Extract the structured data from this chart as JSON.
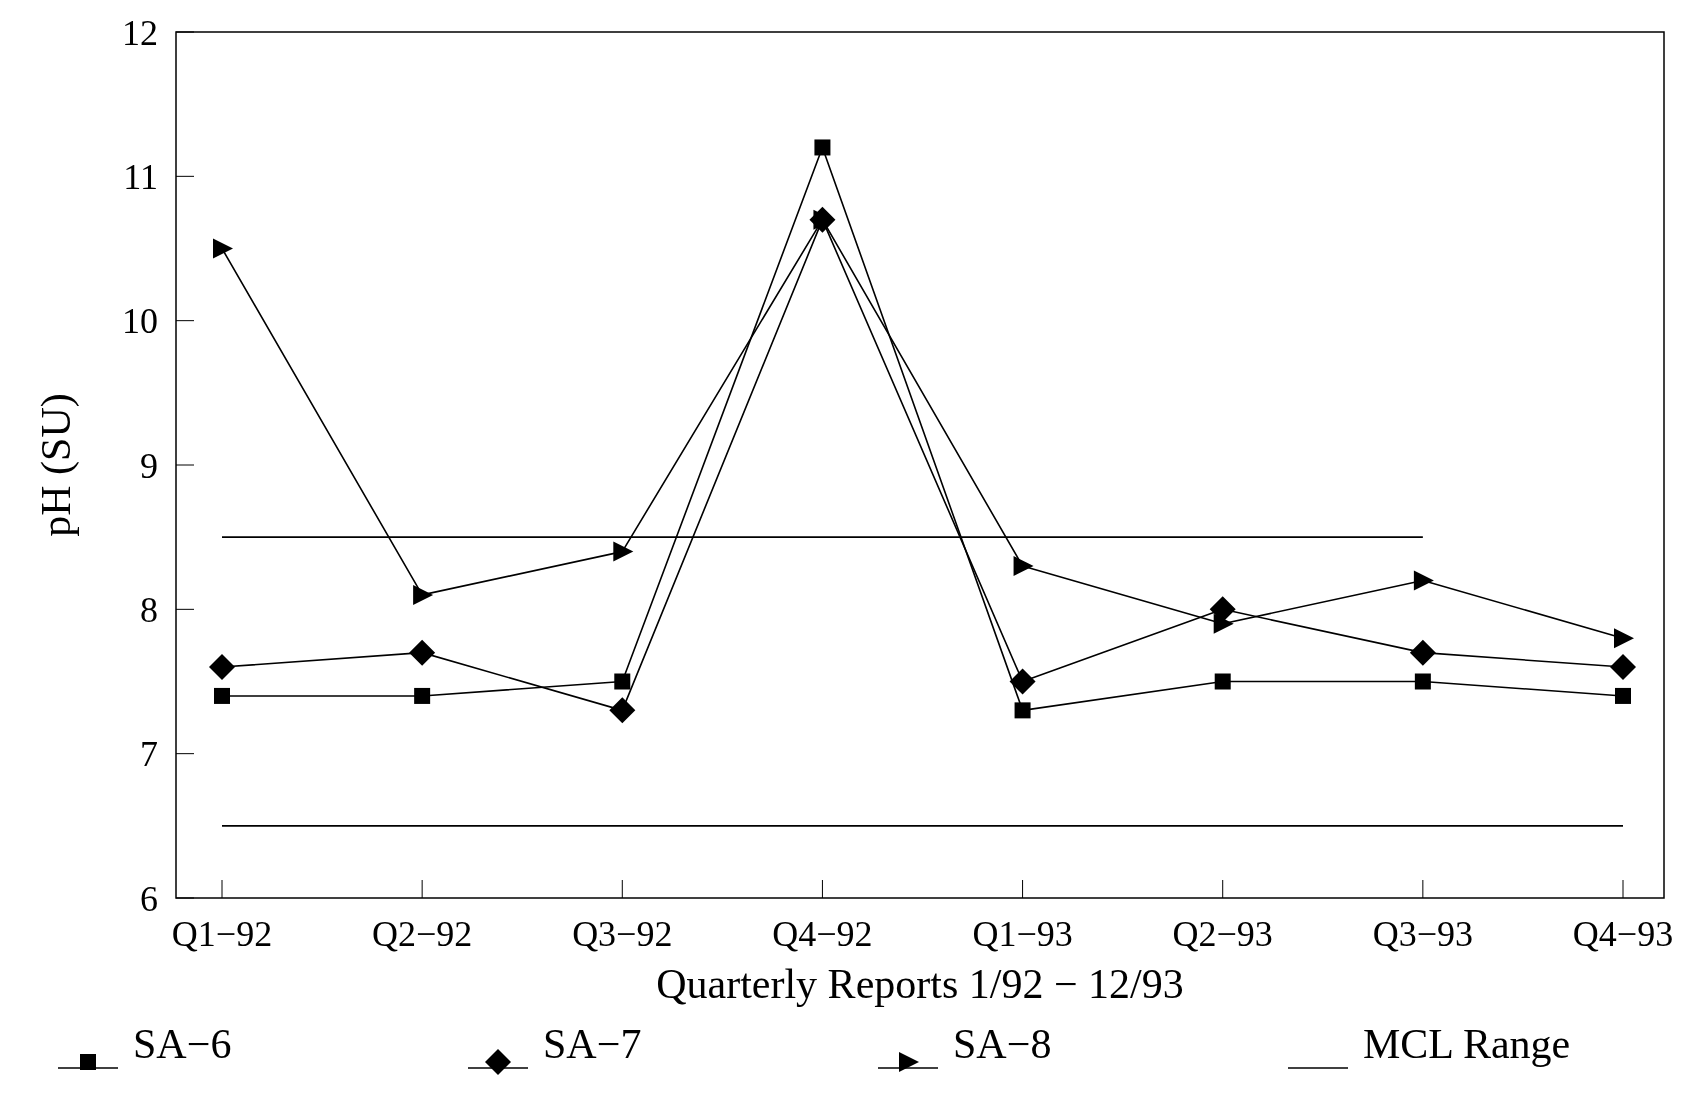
{
  "chart_data": {
    "type": "line",
    "xlabel": "Quarterly Reports 1/92 − 12/93",
    "ylabel": "pH (SU)",
    "categories": [
      "Q1−92",
      "Q2−92",
      "Q3−92",
      "Q4−92",
      "Q1−93",
      "Q2−93",
      "Q3−93",
      "Q4−93"
    ],
    "ylim": [
      6,
      12
    ],
    "yticks": [
      6,
      7,
      8,
      9,
      10,
      11,
      12
    ],
    "grid": false,
    "legend": "bottom",
    "series": [
      {
        "name": "SA−6",
        "color": "#000000",
        "marker": "square",
        "values": [
          7.4,
          7.4,
          7.5,
          11.2,
          7.3,
          7.5,
          7.5,
          7.4
        ]
      },
      {
        "name": "SA−7",
        "color": "#000000",
        "marker": "diamond",
        "values": [
          7.6,
          7.7,
          7.3,
          10.7,
          7.5,
          8.0,
          7.7,
          7.6
        ]
      },
      {
        "name": "SA−8",
        "color": "#000000",
        "marker": "triangle",
        "values": [
          10.5,
          8.1,
          8.4,
          10.7,
          8.3,
          7.9,
          8.2,
          7.8
        ]
      },
      {
        "name": "MCL Range",
        "color": "#000000",
        "marker": "none",
        "values": [
          6.5,
          6.5,
          6.5,
          6.5,
          6.5,
          6.5,
          6.5,
          6.5
        ]
      },
      {
        "color": "#000000",
        "marker": "none",
        "values": [
          8.5,
          8.5,
          8.5,
          8.5,
          8.5,
          8.5,
          8.5,
          null
        ]
      }
    ]
  }
}
